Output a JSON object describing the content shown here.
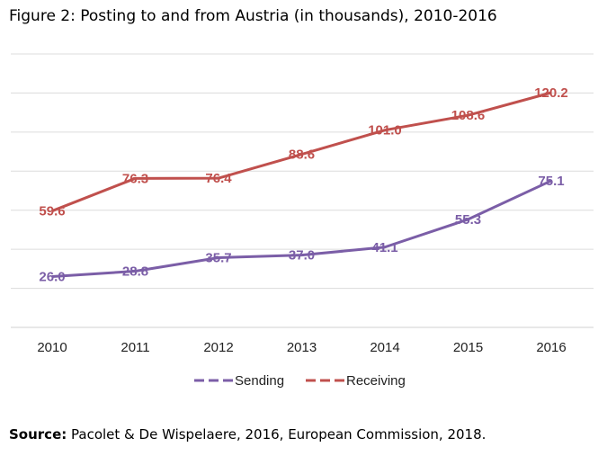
{
  "figure": {
    "title": "Figure 2: Posting to and from Austria (in thousands), 2010-2016",
    "source_label": "Source:",
    "source_text": " Pacolet & De Wispelaere, 2016, European Commission, 2018."
  },
  "chart_data": {
    "type": "line",
    "title": "",
    "xlabel": "",
    "ylabel": "",
    "x": [
      "2010",
      "2011",
      "2012",
      "2013",
      "2014",
      "2015",
      "2016"
    ],
    "ylim": [
      0,
      140
    ],
    "grid": true,
    "legend_position": "bottom",
    "series": [
      {
        "name": "Sending",
        "color": "#7b5ea7",
        "values": [
          26.0,
          28.8,
          35.7,
          37.0,
          41.1,
          55.3,
          75.1
        ],
        "labels": [
          "26.0",
          "28.8",
          "35.7",
          "37.0",
          "41.1",
          "55.3",
          "75.1"
        ]
      },
      {
        "name": "Receiving",
        "color": "#c0504d",
        "values": [
          59.6,
          76.3,
          76.4,
          88.6,
          101.0,
          108.6,
          120.2
        ],
        "labels": [
          "59.6",
          "76.3",
          "76.4",
          "88.6",
          "101.0",
          "108.6",
          "120.2"
        ]
      }
    ]
  }
}
